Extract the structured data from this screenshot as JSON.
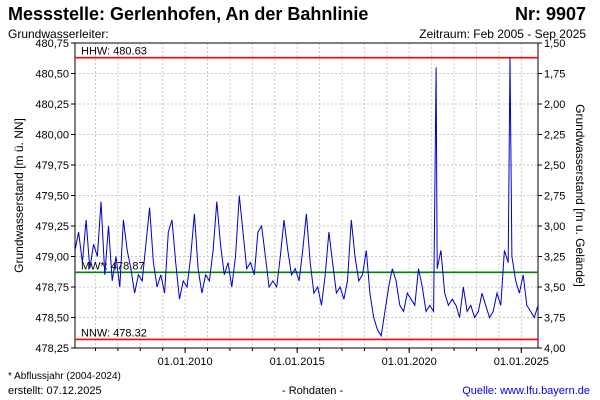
{
  "header": {
    "title": "Messstelle: Gerlenhofen,  An der Bahnlinie",
    "number": "Nr: 9907",
    "aquifer": "Grundwasserleiter:",
    "period": "Zeitraum: Feb 2005 - Sep 2025"
  },
  "footer": {
    "footnote": "* Abflussjahr (2004-2024)",
    "created": "erstellt:  07.12.2025",
    "rawdata": "- Rohdaten -",
    "source": "Quelle: www.lfu.bayern.de"
  },
  "colors": {
    "series": "#0000cc",
    "hhw": "#ff0000",
    "nnw": "#ff0000",
    "mw": "#008000",
    "grid": "#c8c8c8"
  },
  "chart_data": {
    "type": "line",
    "ylabel": "Grundwasserstand [m ü. NN]",
    "y2label": "Grundwasserstand [m u. Gelände]",
    "ylim": [
      478.25,
      480.75
    ],
    "y2lim": [
      4.0,
      1.5
    ],
    "xlim": [
      "2005-02-01",
      "2025-09-30"
    ],
    "yticks": [
      "480,75",
      "480,50",
      "480,25",
      "480,00",
      "479,75",
      "479,50",
      "479,25",
      "479,00",
      "478,75",
      "478,50",
      "478,25"
    ],
    "y2ticks": [
      "1,50",
      "1,75",
      "2,00",
      "2,25",
      "2,50",
      "2,75",
      "3,00",
      "3,25",
      "3,50",
      "3,75",
      "4,00"
    ],
    "xticks": [
      "01.01.2010",
      "01.01.2015",
      "01.01.2020",
      "01.01.2025"
    ],
    "grid": true,
    "reference_lines": [
      {
        "label": "HHW: 480.63",
        "value": 480.63
      },
      {
        "label": "MW*: 478.87",
        "value": 478.87
      },
      {
        "label": "NNW: 478.32",
        "value": 478.32
      }
    ],
    "series": [
      {
        "x": [
          "2005-02-01",
          "2005-04-01",
          "2005-06-01",
          "2005-08-01",
          "2005-10-01",
          "2005-12-01",
          "2006-02-01",
          "2006-04-01",
          "2006-06-01",
          "2006-08-01",
          "2006-10-01",
          "2006-12-01",
          "2007-02-01",
          "2007-04-01",
          "2007-06-01",
          "2007-08-01",
          "2007-10-01",
          "2007-12-01",
          "2008-02-01",
          "2008-04-01",
          "2008-06-01",
          "2008-08-01",
          "2008-10-01",
          "2008-12-01",
          "2009-02-01",
          "2009-04-01",
          "2009-06-01",
          "2009-08-01",
          "2009-10-01",
          "2009-12-01",
          "2010-02-01",
          "2010-04-01",
          "2010-06-01",
          "2010-08-01",
          "2010-10-01",
          "2010-12-01",
          "2011-02-01",
          "2011-04-01",
          "2011-06-01",
          "2011-08-01",
          "2011-10-01",
          "2011-12-01",
          "2012-02-01",
          "2012-04-01",
          "2012-06-01",
          "2012-08-01",
          "2012-10-01",
          "2012-12-01",
          "2013-02-01",
          "2013-04-01",
          "2013-06-01",
          "2013-08-01",
          "2013-10-01",
          "2013-12-01",
          "2014-02-01",
          "2014-04-01",
          "2014-06-01",
          "2014-08-01",
          "2014-10-01",
          "2014-12-01",
          "2015-02-01",
          "2015-04-01",
          "2015-06-01",
          "2015-08-01",
          "2015-10-01",
          "2015-12-01",
          "2016-02-01",
          "2016-04-01",
          "2016-06-01",
          "2016-08-01",
          "2016-10-01",
          "2016-12-01",
          "2017-02-01",
          "2017-04-01",
          "2017-06-01",
          "2017-08-01",
          "2017-10-01",
          "2017-12-01",
          "2018-02-01",
          "2018-04-01",
          "2018-06-01",
          "2018-08-01",
          "2018-10-01",
          "2018-12-01",
          "2019-02-01",
          "2019-04-01",
          "2019-06-01",
          "2019-08-01",
          "2019-10-01",
          "2019-12-01",
          "2020-02-01",
          "2020-04-01",
          "2020-06-01",
          "2020-08-01",
          "2020-10-01",
          "2020-12-01",
          "2021-02-01",
          "2021-03-15",
          "2021-04-01",
          "2021-06-01",
          "2021-08-01",
          "2021-10-01",
          "2021-12-01",
          "2022-02-01",
          "2022-04-01",
          "2022-06-01",
          "2022-08-01",
          "2022-10-01",
          "2022-12-01",
          "2023-02-01",
          "2023-04-01",
          "2023-06-01",
          "2023-08-01",
          "2023-10-01",
          "2023-12-01",
          "2024-02-01",
          "2024-04-01",
          "2024-06-01",
          "2024-07-01",
          "2024-08-01",
          "2024-10-01",
          "2024-12-01",
          "2025-02-01",
          "2025-04-01",
          "2025-06-01",
          "2025-08-01",
          "2025-09-30"
        ],
        "values": [
          479.05,
          479.2,
          478.95,
          479.3,
          478.9,
          479.1,
          479.0,
          479.45,
          478.85,
          479.25,
          478.8,
          479.0,
          478.75,
          479.3,
          479.05,
          478.9,
          478.7,
          478.85,
          478.8,
          479.1,
          479.4,
          478.95,
          478.75,
          478.85,
          478.7,
          479.2,
          479.3,
          478.95,
          478.65,
          478.8,
          478.75,
          479.0,
          479.35,
          478.9,
          478.7,
          478.85,
          478.8,
          479.05,
          479.45,
          479.1,
          478.85,
          478.95,
          478.75,
          479.0,
          479.5,
          479.2,
          478.9,
          478.95,
          478.85,
          479.2,
          479.25,
          479.0,
          478.75,
          478.8,
          478.75,
          479.0,
          479.3,
          479.05,
          478.85,
          478.9,
          478.8,
          479.05,
          479.35,
          478.95,
          478.7,
          478.75,
          478.6,
          478.85,
          479.2,
          478.95,
          478.7,
          478.75,
          478.65,
          478.8,
          479.3,
          479.0,
          478.8,
          478.85,
          479.05,
          478.7,
          478.5,
          478.4,
          478.35,
          478.55,
          478.75,
          478.9,
          478.8,
          478.6,
          478.55,
          478.7,
          478.65,
          478.6,
          478.9,
          478.75,
          478.55,
          478.6,
          478.55,
          480.55,
          478.9,
          479.05,
          478.7,
          478.6,
          478.65,
          478.6,
          478.5,
          478.75,
          478.55,
          478.6,
          478.5,
          478.55,
          478.7,
          478.6,
          478.5,
          478.55,
          478.7,
          478.6,
          479.05,
          478.95,
          480.63,
          479.0,
          478.8,
          478.7,
          478.85,
          478.6,
          478.55,
          478.5,
          478.6
        ]
      }
    ]
  }
}
